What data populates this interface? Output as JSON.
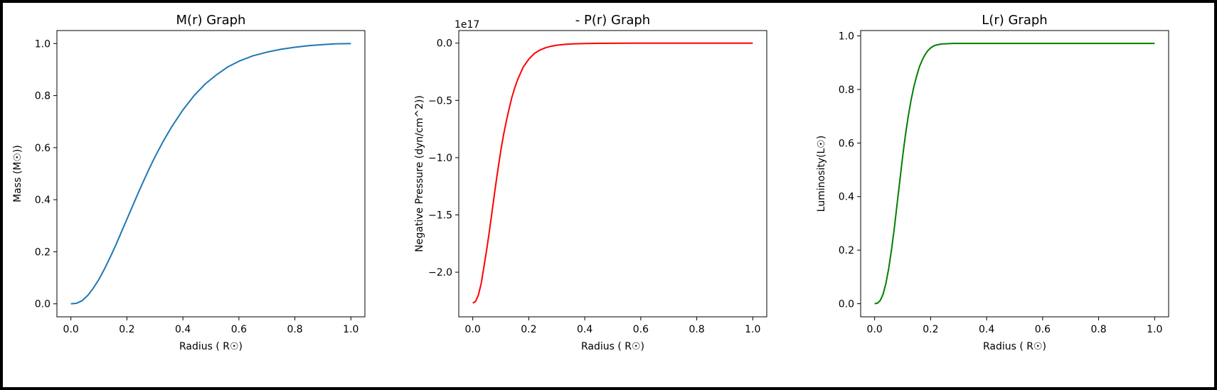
{
  "chart_data": [
    {
      "type": "line",
      "title": "M(r) Graph",
      "xlabel": "Radius ( R☉)",
      "ylabel": "Mass (M☉))",
      "xlim": [
        -0.05,
        1.05
      ],
      "ylim": [
        -0.05,
        1.05
      ],
      "xticks": [
        0.0,
        0.2,
        0.4,
        0.6,
        0.8,
        1.0
      ],
      "xtick_labels": [
        "0.0",
        "0.2",
        "0.4",
        "0.6",
        "0.8",
        "1.0"
      ],
      "yticks": [
        0.0,
        0.2,
        0.4,
        0.6,
        0.8,
        1.0
      ],
      "ytick_labels": [
        "0.0",
        "0.2",
        "0.4",
        "0.6",
        "0.8",
        "1.0"
      ],
      "offset_text": "",
      "color": "#1f77b4",
      "series": [
        {
          "x": [
            0.0,
            0.02,
            0.04,
            0.06,
            0.08,
            0.1,
            0.12,
            0.14,
            0.16,
            0.18,
            0.2,
            0.22,
            0.24,
            0.26,
            0.28,
            0.3,
            0.33,
            0.36,
            0.4,
            0.44,
            0.48,
            0.52,
            0.56,
            0.6,
            0.65,
            0.7,
            0.75,
            0.8,
            0.85,
            0.9,
            0.95,
            1.0
          ],
          "y": [
            0.0,
            0.002,
            0.012,
            0.032,
            0.06,
            0.094,
            0.134,
            0.178,
            0.225,
            0.275,
            0.325,
            0.375,
            0.425,
            0.473,
            0.52,
            0.564,
            0.625,
            0.68,
            0.745,
            0.8,
            0.845,
            0.88,
            0.91,
            0.932,
            0.953,
            0.967,
            0.978,
            0.986,
            0.992,
            0.996,
            0.999,
            1.0
          ]
        }
      ]
    },
    {
      "type": "line",
      "title": "- P(r) Graph",
      "xlabel": "Radius ( R☉)",
      "ylabel": "Negative Pressure (dyn/cm^2))",
      "xlim": [
        -0.05,
        1.05
      ],
      "ylim": [
        -2.39,
        0.11
      ],
      "xticks": [
        0.0,
        0.2,
        0.4,
        0.6,
        0.8,
        1.0
      ],
      "xtick_labels": [
        "0.0",
        "0.2",
        "0.4",
        "0.6",
        "0.8",
        "1.0"
      ],
      "yticks": [
        0.0,
        -0.5,
        -1.0,
        -1.5,
        -2.0
      ],
      "ytick_labels": [
        "0.0",
        "−0.5",
        "−1.0",
        "−1.5",
        "−2.0"
      ],
      "offset_text": "1e17",
      "color": "#ff0000",
      "series": [
        {
          "x": [
            0.0,
            0.01,
            0.02,
            0.03,
            0.04,
            0.05,
            0.06,
            0.07,
            0.08,
            0.09,
            0.1,
            0.11,
            0.12,
            0.13,
            0.14,
            0.15,
            0.16,
            0.18,
            0.2,
            0.22,
            0.24,
            0.26,
            0.28,
            0.3,
            0.33,
            0.36,
            0.4,
            0.45,
            0.5,
            0.6,
            0.7,
            0.8,
            0.9,
            1.0
          ],
          "y": [
            -2.27,
            -2.255,
            -2.2,
            -2.1,
            -1.95,
            -1.8,
            -1.63,
            -1.45,
            -1.27,
            -1.1,
            -0.94,
            -0.8,
            -0.68,
            -0.57,
            -0.47,
            -0.39,
            -0.32,
            -0.21,
            -0.14,
            -0.09,
            -0.06,
            -0.04,
            -0.027,
            -0.018,
            -0.01,
            -0.006,
            -0.003,
            -0.0015,
            -0.0008,
            -0.0003,
            -0.0001,
            0.0,
            0.0,
            0.0
          ]
        }
      ]
    },
    {
      "type": "line",
      "title": "L(r) Graph",
      "xlabel": "Radius ( R☉)",
      "ylabel": "Luminosity(L☉)",
      "xlim": [
        -0.05,
        1.05
      ],
      "ylim": [
        -0.049,
        1.02
      ],
      "xticks": [
        0.0,
        0.2,
        0.4,
        0.6,
        0.8,
        1.0
      ],
      "xtick_labels": [
        "0.0",
        "0.2",
        "0.4",
        "0.6",
        "0.8",
        "1.0"
      ],
      "yticks": [
        0.0,
        0.2,
        0.4,
        0.6,
        0.8,
        1.0
      ],
      "ytick_labels": [
        "0.0",
        "0.2",
        "0.4",
        "0.6",
        "0.8",
        "1.0"
      ],
      "offset_text": "",
      "color": "#008000",
      "series": [
        {
          "x": [
            0.0,
            0.01,
            0.02,
            0.03,
            0.04,
            0.05,
            0.06,
            0.07,
            0.08,
            0.09,
            0.1,
            0.11,
            0.12,
            0.13,
            0.14,
            0.15,
            0.16,
            0.17,
            0.18,
            0.19,
            0.2,
            0.21,
            0.22,
            0.23,
            0.24,
            0.26,
            0.28,
            0.3,
            0.35,
            0.4,
            0.5,
            0.6,
            0.8,
            1.0
          ],
          "y": [
            0.0,
            0.002,
            0.012,
            0.035,
            0.075,
            0.13,
            0.2,
            0.28,
            0.37,
            0.46,
            0.55,
            0.63,
            0.7,
            0.76,
            0.81,
            0.85,
            0.885,
            0.91,
            0.93,
            0.945,
            0.955,
            0.962,
            0.966,
            0.968,
            0.97,
            0.971,
            0.972,
            0.972,
            0.972,
            0.972,
            0.972,
            0.972,
            0.972,
            0.972
          ]
        }
      ]
    }
  ]
}
